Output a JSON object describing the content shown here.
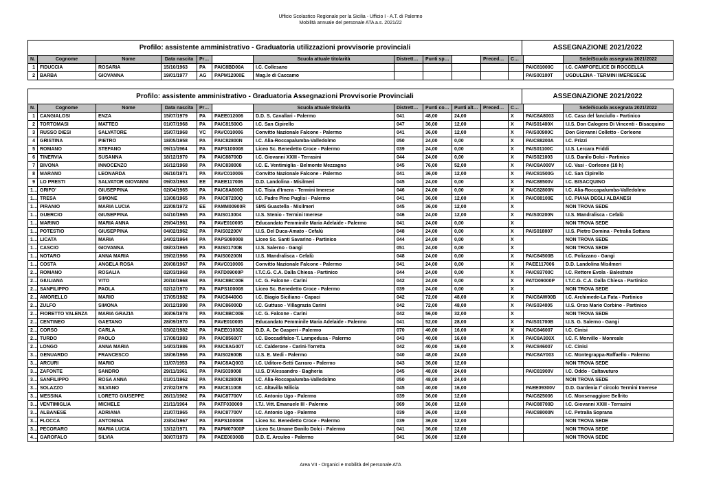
{
  "header": {
    "line1": "Ufficio Scolastico Regionale per la Sicilia - Ufficio I - A.T. di Palermo",
    "line2": "Mobilità annuale del personale ATA a.s. 2021/22"
  },
  "footer": "Area VII - Organici e mobilità del personale ATA",
  "section1": {
    "title": "Profilo: assistente amministrativo - Graduatoria utilizzazioni provvisorie provinciali",
    "assign": "ASSEGNAZIONE 2021/2022",
    "headers": {
      "n": "N.",
      "cognome": "Cognome",
      "nome": "Nome",
      "data": "Data nascita",
      "prov": "Prov.",
      "codice": "",
      "scuola": "Scuola attuale titolarità",
      "distretto": "Distretto titolarità",
      "punti1": "Punti spettanti utilizzaz.",
      "punti2": "",
      "prec": "Precedenza",
      "ccni": "CCNI",
      "codice2": "",
      "sede": "Sede/Scuola assegnata 2021/2022"
    },
    "rows": [
      {
        "n": "1",
        "cognome": "FIDUCCIA",
        "nome": "ROSARIA",
        "data": "15/10/1963",
        "prov": "PA",
        "codice": "PAIC8BD00A",
        "scuola": "I.C. Collesano",
        "distretto": "",
        "punti1": "",
        "punti2": "",
        "prec": "",
        "ccni": "",
        "codice2": "PAIC81000C",
        "sede": "I.C. CAMPOFELICE DI ROCCELLA"
      },
      {
        "n": "2",
        "cognome": "BARBA",
        "nome": "GIOVANNA",
        "data": "19/01/1977",
        "prov": "AG",
        "codice": "PAPM12000E",
        "scuola": "Mag.le di Caccamo",
        "distretto": "",
        "punti1": "",
        "punti2": "",
        "prec": "",
        "ccni": "",
        "codice2": "PAIS00100T",
        "sede": "UGDULENA - TERMINI IMERESESE"
      }
    ]
  },
  "section2": {
    "title": "Profilo: assistente amministrativo - Graduatoria Assegnazioni Provvisorie Provinciali",
    "assign": "ASSEGNAZIONE 2021/2022",
    "headers": {
      "n": "N.",
      "cognome": "Cognome",
      "nome": "Nome",
      "data": "Data nascita",
      "prov": "Prov.",
      "codice": "",
      "scuola": "Scuola attuale titolarità",
      "distretto": "Distretto titolarità",
      "punti1": "Punti comune ricong.",
      "punti2": "Punti altri comuni",
      "prec": "Precedenza",
      "ccni": "CCNI",
      "codice2": "",
      "sede": "Sede/Scuola assegnata 2021/2022"
    },
    "rows": [
      {
        "n": "1",
        "cognome": "CANGIALOSI",
        "nome": "ENZA",
        "data": "15/07/1979",
        "prov": "PA",
        "codice": "PAEE012006",
        "scuola": "D.D. S. Cavallari - Palermo",
        "distretto": "041",
        "punti1": "48,00",
        "punti2": "24,00",
        "prec": "",
        "ccni": "X",
        "codice2": "PAIC8A8003",
        "sede": "I.C. Casa del fanciullo - Partinico"
      },
      {
        "n": "2",
        "cognome": "TORTOMASI",
        "nome": "MATTEO",
        "data": "01/07/1968",
        "prov": "PA",
        "codice": "PAIC81500G",
        "scuola": "I.C. San Cipirello",
        "distretto": "047",
        "punti1": "36,00",
        "punti2": "12,00",
        "prec": "",
        "ccni": "X",
        "codice2": "PAIS01400X",
        "sede": "I.I.S. Don Calogero Di Vincenti - Bisacquino"
      },
      {
        "n": "3",
        "cognome": "RUSSO DIESI",
        "nome": "SALVATORE",
        "data": "15/07/1968",
        "prov": "VC",
        "codice": "PAVC010006",
        "scuola": "Convitto Nazionale Falcone - Palermo",
        "distretto": "041",
        "punti1": "36,00",
        "punti2": "12,00",
        "prec": "",
        "ccni": "X",
        "codice2": "PAIS00900C",
        "sede": "Don Giovanni Colletto - Corleone"
      },
      {
        "n": "4",
        "cognome": "GRISTINA",
        "nome": "PIETRO",
        "data": "18/05/1958",
        "prov": "PA",
        "codice": "PAIC82800N",
        "scuola": "I.C. Alia-Roccapalumba-Valledolmo",
        "distretto": "050",
        "punti1": "24,00",
        "punti2": "0,00",
        "prec": "",
        "ccni": "X",
        "codice2": "PAIC88200A",
        "sede": "I.C. Prizzi"
      },
      {
        "n": "5",
        "cognome": "ROMANO",
        "nome": "STEFANO",
        "data": "09/11/1964",
        "prov": "PA",
        "codice": "PAPS100008",
        "scuola": "Liceo Sc. Benedetto Croce - Palermo",
        "distretto": "039",
        "punti1": "24,00",
        "punti2": "0,00",
        "prec": "",
        "ccni": "X",
        "codice2": "PAIS01100C",
        "sede": "I.I.S. Lercara Friddi"
      },
      {
        "n": "6",
        "cognome": "TINERVIA",
        "nome": "SUSANNA",
        "data": "18/12/1970",
        "prov": "PA",
        "codice": "PAIC88700D",
        "scuola": "I.C. Giovanni XXIII - Terrasini",
        "distretto": "044",
        "punti1": "24,00",
        "punti2": "0,00",
        "prec": "",
        "ccni": "X",
        "codice2": "PAIS021003",
        "sede": "I.I.S. Danilo Dolci - Partinico"
      },
      {
        "n": "7",
        "cognome": "BIVONA",
        "nome": "INNOCENZO",
        "data": "16/12/1968",
        "prov": "PA",
        "codice": "PAIC838008",
        "scuola": "I.C. E. Ventimiglia - Belmonte Mezzagno",
        "distretto": "045",
        "punti1": "76,00",
        "punti2": "52,00",
        "prec": "",
        "ccni": "X",
        "codice2": "PAIC8A000V",
        "sede": "I.C. Vasi - Corleone (18 h)"
      },
      {
        "n": "8",
        "cognome": "MARANO",
        "nome": "LEONARDA",
        "data": "06/10/1971",
        "prov": "PA",
        "codice": "PAVC010006",
        "scuola": "Convitto Nazionale Falcone - Palermo",
        "distretto": "041",
        "punti1": "36,00",
        "punti2": "12,00",
        "prec": "",
        "ccni": "X",
        "codice2": "PAIC81500G",
        "sede": "I.C. San Cipirello"
      },
      {
        "n": "9",
        "cognome": "LO PRESTI",
        "nome": "SALVATOR GIOVANNI",
        "data": "09/03/1963",
        "prov": "EE",
        "codice": "PAEE117006",
        "scuola": "D.D. Landolina - Misilmeri",
        "distretto": "045",
        "punti1": "24,00",
        "punti2": "0,00",
        "prec": "",
        "ccni": "X",
        "codice2": "PAIC88500V",
        "sede": "I.C. BISACQUINO"
      },
      {
        "n": "10",
        "cognome": "GRIFO'",
        "nome": "GIUSEPPINA",
        "data": "02/04/1965",
        "prov": "PA",
        "codice": "PAIC8A600B",
        "scuola": "I.C. Tisia d'Imera - Termini Imerese",
        "distretto": "046",
        "punti1": "24,00",
        "punti2": "0,00",
        "prec": "",
        "ccni": "X",
        "codice2": "PAIC82800N",
        "sede": "I.C. Alia-Roccapalumba-Valledolmo"
      },
      {
        "n": "11",
        "cognome": "TRESA",
        "nome": "SIMONE",
        "data": "13/08/1965",
        "prov": "PA",
        "codice": "PAIC87200Q",
        "scuola": "I.C. Padre Pino Puglisi - Palermo",
        "distretto": "041",
        "punti1": "36,00",
        "punti2": "12,00",
        "prec": "",
        "ccni": "X",
        "codice2": "PAIC88100E",
        "sede": "I.C. PIANA DEGLI ALBANESI"
      },
      {
        "n": "12",
        "cognome": "PIRANIO",
        "nome": "MARIA LUCIA",
        "data": "22/08/1972",
        "prov": "EE",
        "codice": "PAMM00900R",
        "scuola": "SMS Guastella - Misilmeri",
        "distretto": "045",
        "punti1": "36,00",
        "punti2": "12,00",
        "prec": "",
        "ccni": "X",
        "codice2": "",
        "sede": "NON TROVA SEDE"
      },
      {
        "n": "13",
        "cognome": "GUERCIO",
        "nome": "GIUSEPPINA",
        "data": "04/10/1965",
        "prov": "PA",
        "codice": "PAIS013004",
        "scuola": "I.I.S. Stenio - Termini Imerese",
        "distretto": "046",
        "punti1": "24,00",
        "punti2": "12,00",
        "prec": "",
        "ccni": "X",
        "codice2": "PAIS00200N",
        "sede": "I.I.S. Mandralisca - Cefalù"
      },
      {
        "n": "14",
        "cognome": "MARINO",
        "nome": "MARIA ANNA",
        "data": "29/04/1961",
        "prov": "PA",
        "codice": "PAVE010005",
        "scuola": "Educandato Femminile Maria Adelaide - Palermo",
        "distretto": "041",
        "punti1": "24,00",
        "punti2": "0,00",
        "prec": "",
        "ccni": "X",
        "codice2": "",
        "sede": "NON TROVA SEDE"
      },
      {
        "n": "15",
        "cognome": "POTESTIO",
        "nome": "GIUSEPPINA",
        "data": "04/02/1962",
        "prov": "PA",
        "codice": "PAIS02200V",
        "scuola": "I.I.S. Del Duca-Amato - Cefalù",
        "distretto": "048",
        "punti1": "24,00",
        "punti2": "0,00",
        "prec": "",
        "ccni": "X",
        "codice2": "PAIS018007",
        "sede": "I.I.S. Pietro Domina - Petralia Sottana"
      },
      {
        "n": "16",
        "cognome": "LICATA",
        "nome": "MARIA",
        "data": "24/02/1964",
        "prov": "PA",
        "codice": "PAPS080008",
        "scuola": "Liceo Sc. Santi Savarino - Partinico",
        "distretto": "044",
        "punti1": "24,00",
        "punti2": "0,00",
        "prec": "",
        "ccni": "X",
        "codice2": "",
        "sede": "NON TROVA SEDE"
      },
      {
        "n": "17",
        "cognome": "CASCIO",
        "nome": "GIOVANNA",
        "data": "08/03/1965",
        "prov": "PA",
        "codice": "PAIS01700B",
        "scuola": "I.I.S. Salerno - Gangi",
        "distretto": "051",
        "punti1": "24,00",
        "punti2": "0,00",
        "prec": "",
        "ccni": "X",
        "codice2": "",
        "sede": "NON TROVA SEDE"
      },
      {
        "n": "18",
        "cognome": "NOTARO",
        "nome": "ANNA MARIA",
        "data": "19/02/1966",
        "prov": "PA",
        "codice": "PAIS00200N",
        "scuola": "I.I.S. Mandralisca - Cefalù",
        "distretto": "048",
        "punti1": "24,00",
        "punti2": "0,00",
        "prec": "",
        "ccni": "X",
        "codice2": "PAIC84500B",
        "sede": "I.C. Polizzano - Gangi"
      },
      {
        "n": "19",
        "cognome": "COSTA",
        "nome": "ANGELA ROSA",
        "data": "20/08/1967",
        "prov": "PA",
        "codice": "PAVC010006",
        "scuola": "Convitto Nazionale Falcone - Palermo",
        "distretto": "041",
        "punti1": "24,00",
        "punti2": "0,00",
        "prec": "",
        "ccni": "X",
        "codice2": "PAEE117006",
        "sede": "D.D. Landolina Misilmeri"
      },
      {
        "n": "20",
        "cognome": "ROMANO",
        "nome": "ROSALIA",
        "data": "02/03/1968",
        "prov": "PA",
        "codice": "PATD09000P",
        "scuola": "I.T.C.G. C.A. Dalla Chiesa - Partinico",
        "distretto": "044",
        "punti1": "24,00",
        "punti2": "0,00",
        "prec": "",
        "ccni": "X",
        "codice2": "PAIC83700C",
        "sede": "I.C. Rettore Evola - Balestrate"
      },
      {
        "n": "21",
        "cognome": "GIULIANA",
        "nome": "VITO",
        "data": "20/10/1968",
        "prov": "PA",
        "codice": "PAIC8BC00E",
        "scuola": "I.C. G. Falcone - Carini",
        "distretto": "042",
        "punti1": "24,00",
        "punti2": "0,00",
        "prec": "",
        "ccni": "X",
        "codice2": "PATD09000P",
        "sede": "I.T.C.G. C.A. Dalla Chiesa - Partinico"
      },
      {
        "n": "22",
        "cognome": "SANFILIPPO",
        "nome": "PAOLA",
        "data": "02/12/1970",
        "prov": "PA",
        "codice": "PAPS100008",
        "scuola": "Liceo Sc. Benedetto Croce - Palermo",
        "distretto": "039",
        "punti1": "24,00",
        "punti2": "0,00",
        "prec": "",
        "ccni": "X",
        "codice2": "",
        "sede": "NON TROVA SEDE"
      },
      {
        "n": "23",
        "cognome": "AMORELLO",
        "nome": "MARIO",
        "data": "17/05/1982",
        "prov": "PA",
        "codice": "PAIC84400G",
        "scuola": "I.C. Biagio Siciliano - Capaci",
        "distretto": "042",
        "punti1": "72,00",
        "punti2": "48,00",
        "prec": "",
        "ccni": "X",
        "codice2": "PAIC8AW00B",
        "sede": "I.C. Archimede-La Fata - Partinico"
      },
      {
        "n": "24",
        "cognome": "ZULFO",
        "nome": "SIMONA",
        "data": "30/12/1998",
        "prov": "PA",
        "codice": "PAIC86000D",
        "scuola": "I.C. Guttuso - Villagrazia Carini",
        "distretto": "042",
        "punti1": "72,00",
        "punti2": "48,00",
        "prec": "",
        "ccni": "X",
        "codice2": "PAIS034005",
        "sede": "I.I.S. Orso Mario Corbino - Partinico"
      },
      {
        "n": "25",
        "cognome": "FIORETTO VALENZA",
        "nome": "MARIA GRAZIA",
        "data": "30/06/1978",
        "prov": "PA",
        "codice": "PAIC8BC00E",
        "scuola": "I.C. G. Falcone - Carini",
        "distretto": "042",
        "punti1": "56,00",
        "punti2": "32,00",
        "prec": "",
        "ccni": "X",
        "codice2": "",
        "sede": "NON TROVA SEDE"
      },
      {
        "n": "26",
        "cognome": "CENTINEO",
        "nome": "GAETANO",
        "data": "28/09/1970",
        "prov": "PA",
        "codice": "PAVE010005",
        "scuola": "Educandato Femminile Maria Adelaide - Palermo",
        "distretto": "041",
        "punti1": "52,00",
        "punti2": "28,00",
        "prec": "",
        "ccni": "X",
        "codice2": "PAIS01700B",
        "sede": "I.I.S. G. Salerno - Gangi"
      },
      {
        "n": "27",
        "cognome": "CORSO",
        "nome": "CARLA",
        "data": "03/02/1982",
        "prov": "PA",
        "codice": "PAEE010302",
        "scuola": "D.D. A. De Gasperi - Palermo",
        "distretto": "070",
        "punti1": "40,00",
        "punti2": "16,00",
        "prec": "",
        "ccni": "X",
        "codice2": "PAIC846007",
        "sede": "I.C. Cinisi"
      },
      {
        "n": "28",
        "cognome": "TURDO",
        "nome": "PAOLO",
        "data": "17/08/1983",
        "prov": "PA",
        "codice": "PAIC85600T",
        "scuola": "I.C. Boccadifalco-T. Lampedusa - Palermo",
        "distretto": "043",
        "punti1": "40,00",
        "punti2": "16,00",
        "prec": "",
        "ccni": "X",
        "codice2": "PAIC8A300X",
        "sede": "I.C. F. Morvillo - Monreale"
      },
      {
        "n": "29",
        "cognome": "LONGO",
        "nome": "ANNA MARIA",
        "data": "14/03/1986",
        "prov": "PA",
        "codice": "PAIC8AG00T",
        "scuola": "I.C. Calderone - Carini-Torretta",
        "distretto": "042",
        "punti1": "40,00",
        "punti2": "16,00",
        "prec": "",
        "ccni": "X",
        "codice2": "PAIC846007",
        "sede": "I.C. Cinisi"
      },
      {
        "n": "30",
        "cognome": "GENUARDO",
        "nome": "FRANCESCO",
        "data": "18/06/1966",
        "prov": "PA",
        "codice": "PAIS02600B",
        "scuola": "I.I.S. E. Medi - Palermo",
        "distretto": "040",
        "punti1": "48,00",
        "punti2": "24,00",
        "prec": "",
        "ccni": "",
        "codice2": "PAIC8AY003",
        "sede": "I.C. Montegrappa-Raffaello - Palermo"
      },
      {
        "n": "31",
        "cognome": "ARCURI",
        "nome": "MARIO",
        "data": "11/07/1953",
        "prov": "PA",
        "codice": "PAIC8AQ003",
        "scuola": "I.C. Uditore-Setti Carraro - Palermo",
        "distretto": "043",
        "punti1": "36,00",
        "punti2": "12,00",
        "prec": "",
        "ccni": "",
        "codice2": "",
        "sede": "NON TROVA SEDE"
      },
      {
        "n": "32",
        "cognome": "ZAFONTE",
        "nome": "SANDRO",
        "data": "29/11/1961",
        "prov": "PA",
        "codice": "PAIS039008",
        "scuola": "I.I.S. D'Alessandro - Bagheria",
        "distretto": "045",
        "punti1": "48,00",
        "punti2": "24,00",
        "prec": "",
        "ccni": "",
        "codice2": "PAIC81900V",
        "sede": "I.C. Oddo - Caltavuturo"
      },
      {
        "n": "33",
        "cognome": "SANFILIPPO",
        "nome": "ROSA ANNA",
        "data": "01/01/1962",
        "prov": "PA",
        "codice": "PAIC82800N",
        "scuola": "I.C. Alia-Roccapalumba-Valledolmo",
        "distretto": "050",
        "punti1": "48,00",
        "punti2": "24,00",
        "prec": "",
        "ccni": "",
        "codice2": "",
        "sede": "NON TROVA SEDE"
      },
      {
        "n": "34",
        "cognome": "SOLAZZO",
        "nome": "SILVANO",
        "data": "27/02/1976",
        "prov": "PA",
        "codice": "PAIC811008",
        "scuola": "I.C. Altavilla Milicia",
        "distretto": "045",
        "punti1": "40,00",
        "punti2": "16,00",
        "prec": "",
        "ccni": "",
        "codice2": "PAEE09300V",
        "sede": "D.D. Gardenia I° circolo Termini Imerese"
      },
      {
        "n": "35",
        "cognome": "MESSINA",
        "nome": "LORETO GIUSEPPE",
        "data": "26/11/1962",
        "prov": "PA",
        "codice": "PAIC87700V",
        "scuola": "I.C. Antonio Ugo - Palermo",
        "distretto": "039",
        "punti1": "36,00",
        "punti2": "12,00",
        "prec": "",
        "ccni": "",
        "codice2": "PAIC825006",
        "sede": "I.C. Monsenaggiore Bellrito"
      },
      {
        "n": "36",
        "cognome": "VENTIMIGLIA",
        "nome": "MICHELE",
        "data": "21/11/1964",
        "prov": "PA",
        "codice": "PATF030009",
        "scuola": "I.T.I. Vitt. Emanuele III - Palermo",
        "distretto": "069",
        "punti1": "36,00",
        "punti2": "12,00",
        "prec": "",
        "ccni": "",
        "codice2": "PAIC88700D",
        "sede": "I.C. Giovanni XXIII - Terrasini"
      },
      {
        "n": "37",
        "cognome": "ALBANESE",
        "nome": "ADRIANA",
        "data": "21/07/1965",
        "prov": "PA",
        "codice": "PAIC87700V",
        "scuola": "I.C. Antonio Ugo - Palermo",
        "distretto": "039",
        "punti1": "36,00",
        "punti2": "12,00",
        "prec": "",
        "ccni": "",
        "codice2": "PAIC88000N",
        "sede": "I.C. Petralia Soprana"
      },
      {
        "n": "38",
        "cognome": "FLOCCA",
        "nome": "ANTONINA",
        "data": "23/04/1967",
        "prov": "PA",
        "codice": "PAPS100008",
        "scuola": "Liceo Sc. Benedetto Croce - Palermo",
        "distretto": "039",
        "punti1": "36,00",
        "punti2": "12,00",
        "prec": "",
        "ccni": "",
        "codice2": "",
        "sede": "NON TROVA SEDE"
      },
      {
        "n": "39",
        "cognome": "PECORARO",
        "nome": "MARIA LUCIA",
        "data": "13/12/1971",
        "prov": "PA",
        "codice": "PAPM07000P",
        "scuola": "Liceo Sc.Umane Danilo Dolci - Palermo",
        "distretto": "041",
        "punti1": "36,00",
        "punti2": "12,00",
        "prec": "",
        "ccni": "",
        "codice2": "",
        "sede": "NON TROVA SEDE"
      },
      {
        "n": "40",
        "cognome": "GAROFALO",
        "nome": "SILVIA",
        "data": "30/07/1973",
        "prov": "PA",
        "codice": "PAEE00300B",
        "scuola": "D.D. E. Arculeo - Palermo",
        "distretto": "041",
        "punti1": "36,00",
        "punti2": "12,00",
        "prec": "",
        "ccni": "",
        "codice2": "",
        "sede": "NON TROVA SEDE"
      }
    ]
  }
}
